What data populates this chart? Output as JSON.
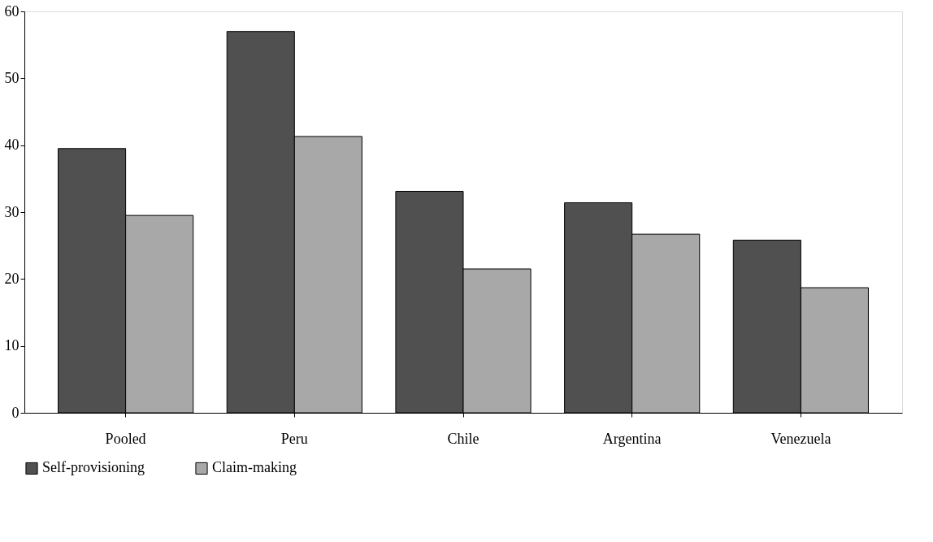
{
  "chart_data": {
    "type": "bar",
    "categories": [
      "Pooled",
      "Peru",
      "Chile",
      "Argentina",
      "Venezuela"
    ],
    "series": [
      {
        "name": "Self-provisioning",
        "color": "#505050",
        "values": [
          39.5,
          57.0,
          33.1,
          31.4,
          25.8
        ]
      },
      {
        "name": "Claim-making",
        "color": "#a8a8a8",
        "values": [
          29.5,
          41.3,
          21.5,
          26.7,
          18.7
        ]
      }
    ],
    "ylim": [
      0,
      60
    ],
    "yticks": [
      0,
      10,
      20,
      30,
      40,
      50,
      60
    ],
    "grid": false,
    "legend": "bottom"
  }
}
